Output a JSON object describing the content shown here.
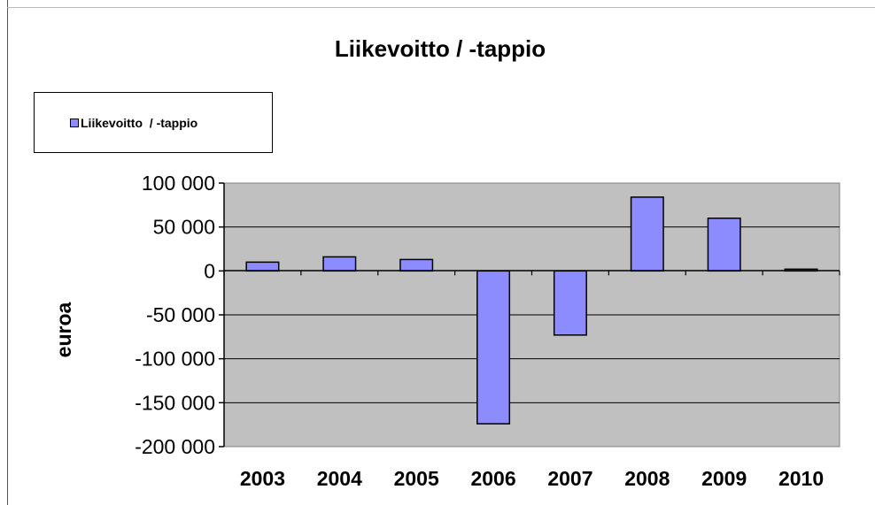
{
  "chart_data": {
    "type": "bar",
    "title": "Liikevoitto / -tappio",
    "xlabel": "",
    "ylabel": "euroa",
    "categories": [
      "2003",
      "2004",
      "2005",
      "2006",
      "2007",
      "2008",
      "2009",
      "2010"
    ],
    "series": [
      {
        "name": "Liikevoitto  / -tappio",
        "values": [
          10000,
          16000,
          13000,
          -174000,
          -73000,
          84000,
          60000,
          2000
        ]
      }
    ],
    "ylim": [
      -200000,
      100000
    ],
    "yticks": [
      100000,
      50000,
      0,
      -50000,
      -100000,
      -150000,
      -200000
    ],
    "ytick_labels": [
      "100 000",
      "50 000",
      "0",
      "-50 000",
      "-100 000",
      "-150 000",
      "-200 000"
    ],
    "grid": true,
    "legend_position": "top-left",
    "colors": {
      "bar": "#8c8cff",
      "plot_background": "#c0c0c0",
      "gridline": "#000000"
    }
  }
}
